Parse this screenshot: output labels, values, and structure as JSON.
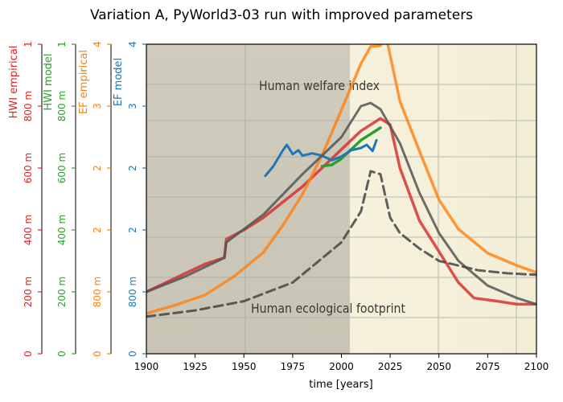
{
  "chart_data": {
    "type": "line",
    "title": "Variation A, PyWorld3-03 run with improved parameters",
    "xlabel": "time [years]",
    "xlim": [
      1900,
      2100
    ],
    "x_ticks": [
      "1900",
      "1925",
      "1950",
      "1975",
      "2000",
      "2025",
      "2050",
      "2075",
      "2100"
    ],
    "grid": false,
    "background_image_labels": [
      "Human welfare index",
      "Human ecological footprint"
    ],
    "y_axes": [
      {
        "label": "HWI empirical",
        "color": "#d62728",
        "ylim": [
          0,
          1
        ],
        "ticks": [
          "0",
          "200 m",
          "400 m",
          "600 m",
          "800 m",
          "1"
        ]
      },
      {
        "label": "HWI model",
        "color": "#2ca02c",
        "ylim": [
          0,
          1
        ],
        "ticks": [
          "0",
          "200 m",
          "400 m",
          "600 m",
          "800 m",
          "1"
        ]
      },
      {
        "label": "EF empirical",
        "color": "#ff7f0e",
        "ylim": [
          0,
          4
        ],
        "ticks": [
          "0",
          "800 m",
          "2",
          "2",
          "3",
          "4"
        ]
      },
      {
        "label": "EF model",
        "color": "#1f77b4",
        "ylim": [
          0,
          4
        ],
        "ticks": [
          "0",
          "800 m",
          "2",
          "2",
          "3",
          "4"
        ]
      }
    ],
    "series": [
      {
        "name": "HWI model",
        "color": "#d62728",
        "axis": 0,
        "style": "solid",
        "x": [
          1900,
          1910,
          1920,
          1930,
          1940,
          1941,
          1950,
          1960,
          1970,
          1980,
          1990,
          2000,
          2010,
          2020,
          2025,
          2030,
          2040,
          2050,
          2060,
          2068,
          2080,
          2090,
          2100
        ],
        "y": [
          0.2,
          0.23,
          0.26,
          0.29,
          0.31,
          0.37,
          0.4,
          0.44,
          0.49,
          0.54,
          0.6,
          0.66,
          0.72,
          0.76,
          0.74,
          0.6,
          0.43,
          0.33,
          0.23,
          0.18,
          0.17,
          0.16,
          0.16
        ]
      },
      {
        "name": "HWI empirical",
        "color": "#2ca02c",
        "axis": 1,
        "style": "solid",
        "x": [
          1990,
          1995,
          2000,
          2005,
          2010,
          2015,
          2020
        ],
        "y": [
          0.606,
          0.61,
          0.63,
          0.66,
          0.69,
          0.71,
          0.73
        ]
      },
      {
        "name": "EF model",
        "color": "#ff7f0e",
        "axis": 2,
        "style": "solid",
        "x": [
          1900,
          1915,
          1930,
          1945,
          1960,
          1970,
          1980,
          1990,
          2000,
          2010,
          2015,
          2020,
          2023,
          2030,
          2040,
          2050,
          2060,
          2075,
          2090,
          2100
        ],
        "y": [
          0.52,
          0.63,
          0.76,
          1.0,
          1.31,
          1.66,
          2.06,
          2.56,
          3.15,
          3.75,
          3.97,
          3.98,
          4.09,
          3.26,
          2.62,
          1.99,
          1.61,
          1.3,
          1.14,
          1.05
        ]
      },
      {
        "name": "EF empirical",
        "color": "#1f77b4",
        "axis": 3,
        "style": "solid",
        "x": [
          1961,
          1965,
          1970,
          1972,
          1975,
          1978,
          1980,
          1985,
          1990,
          1995,
          2000,
          2005,
          2010,
          2013,
          2016,
          2018
        ],
        "y": [
          2.3,
          2.42,
          2.63,
          2.7,
          2.58,
          2.63,
          2.56,
          2.59,
          2.56,
          2.5,
          2.55,
          2.63,
          2.66,
          2.7,
          2.62,
          2.76
        ]
      },
      {
        "name": "",
        "color": "#555555",
        "axis": 0,
        "style": "solid",
        "x": [
          1900,
          1920,
          1940,
          1941,
          1960,
          1980,
          2000,
          2010,
          2015,
          2020,
          2030,
          2040,
          2050,
          2060,
          2075,
          2090,
          2100
        ],
        "y": [
          0.2,
          0.25,
          0.31,
          0.36,
          0.45,
          0.58,
          0.7,
          0.8,
          0.81,
          0.79,
          0.68,
          0.52,
          0.39,
          0.3,
          0.22,
          0.18,
          0.16
        ]
      },
      {
        "name": "",
        "color": "#444444",
        "axis": 0,
        "style": "dashed",
        "x": [
          1900,
          1925,
          1950,
          1975,
          2000,
          2010,
          2015,
          2020,
          2025,
          2030,
          2040,
          2050,
          2070,
          2085,
          2100
        ],
        "y": [
          0.12,
          0.14,
          0.17,
          0.23,
          0.36,
          0.46,
          0.59,
          0.58,
          0.44,
          0.39,
          0.34,
          0.3,
          0.27,
          0.26,
          0.255
        ]
      }
    ]
  }
}
